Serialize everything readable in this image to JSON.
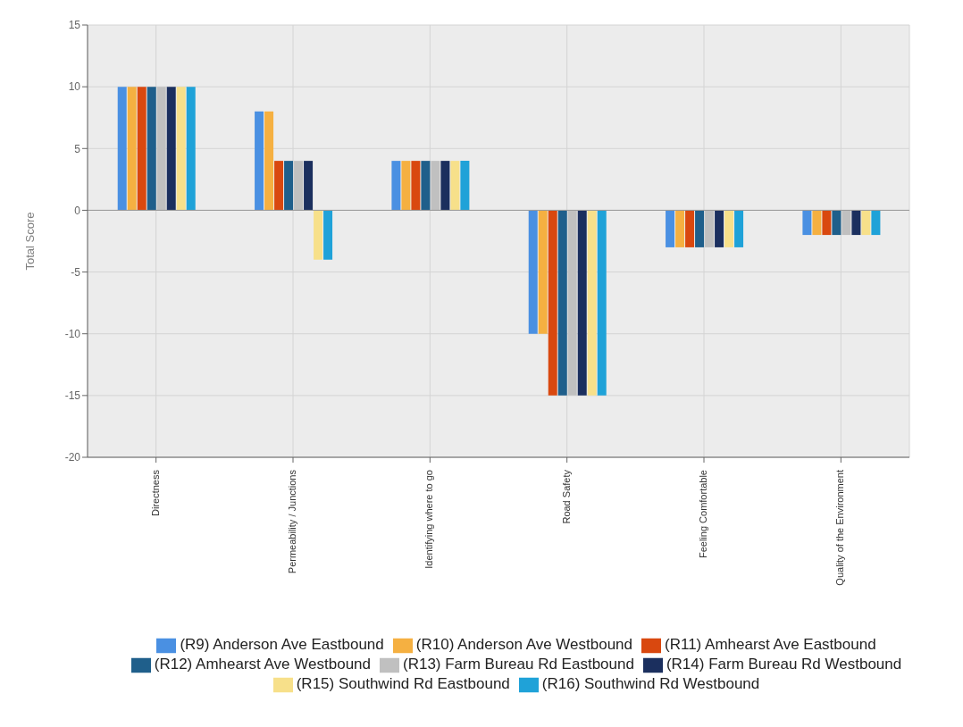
{
  "chart_data": {
    "type": "bar",
    "ylabel": "Total Score",
    "categories": [
      "Directness",
      "Permeability / Junctions",
      "Identifying where to go",
      "Road Safety",
      "Feeling Comfortable",
      "Quality of the Environment"
    ],
    "series": [
      {
        "name": "(R9) Anderson Ave Eastbound",
        "color": "#4a90e2",
        "values": [
          10,
          8,
          4,
          -10,
          -3,
          -2
        ]
      },
      {
        "name": "(R10) Anderson Ave Westbound",
        "color": "#f5b041",
        "values": [
          10,
          8,
          4,
          -10,
          -3,
          -2
        ]
      },
      {
        "name": "(R11) Amhearst Ave Eastbound",
        "color": "#d9480f",
        "values": [
          10,
          4,
          4,
          -15,
          -3,
          -2
        ]
      },
      {
        "name": "(R12) Amhearst Ave Westbound",
        "color": "#1f5f8b",
        "values": [
          10,
          4,
          4,
          -15,
          -3,
          -2
        ]
      },
      {
        "name": "(R13) Farm Bureau Rd Eastbound",
        "color": "#c0c0c0",
        "values": [
          10,
          4,
          4,
          -15,
          -3,
          -2
        ]
      },
      {
        "name": "(R14) Farm Bureau Rd Westbound",
        "color": "#1b2f5e",
        "values": [
          10,
          4,
          4,
          -15,
          -3,
          -2
        ]
      },
      {
        "name": "(R15) Southwind Rd Eastbound",
        "color": "#f7e08a",
        "values": [
          10,
          -4,
          4,
          -15,
          -3,
          -2
        ]
      },
      {
        "name": "(R16) Southwind Rd Westbound",
        "color": "#1fa2d8",
        "values": [
          10,
          -4,
          4,
          -15,
          -3,
          -2
        ]
      }
    ],
    "ylim": [
      -20,
      15
    ],
    "yticks": [
      -20,
      -15,
      -10,
      -5,
      0,
      5,
      10,
      15
    ],
    "grid": true,
    "legend": "bottom"
  }
}
